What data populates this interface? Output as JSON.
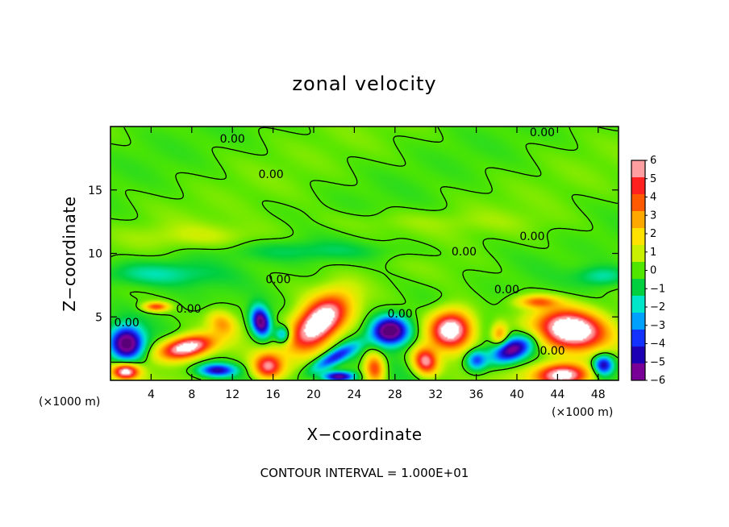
{
  "chart_data": {
    "type": "heatmap",
    "title": "zonal velocity",
    "xlabel": "X−coordinate",
    "ylabel": "Z−coordinate",
    "x_unit": "(×1000 m)",
    "z_unit": "(×1000 m)",
    "footer": "CONTOUR INTERVAL = 1.000E+01",
    "xlim": [
      0,
      50
    ],
    "ylim": [
      0,
      20
    ],
    "x_ticks": [
      "4",
      "8",
      "12",
      "16",
      "20",
      "24",
      "28",
      "32",
      "36",
      "40",
      "44",
      "48"
    ],
    "x_tick_values": [
      4,
      8,
      12,
      16,
      20,
      24,
      28,
      32,
      36,
      40,
      44,
      48
    ],
    "y_ticks": [
      "5",
      "10",
      "15"
    ],
    "y_tick_values": [
      5,
      10,
      15
    ],
    "colorbar": {
      "labels": [
        "6",
        "5",
        "4",
        "3",
        "2",
        "1",
        "0",
        "−1",
        "−2",
        "−3",
        "−4",
        "−5",
        "−6"
      ],
      "values": [
        6,
        5,
        4,
        3,
        2,
        1,
        0,
        -1,
        -2,
        -3,
        -4,
        -5,
        -6
      ],
      "colors": [
        "#ff9ea0",
        "#ff2020",
        "#ff5a00",
        "#ffa800",
        "#ffe200",
        "#c8f000",
        "#50e600",
        "#00d040",
        "#00e6c8",
        "#00a0ff",
        "#1432ff",
        "#1e00b4",
        "#780096"
      ]
    },
    "contour_labels": [
      {
        "text": "0.00",
        "x": 12.0,
        "z": 19.0
      },
      {
        "text": "0.00",
        "x": 42.5,
        "z": 19.5
      },
      {
        "text": "0.00",
        "x": 15.8,
        "z": 16.2
      },
      {
        "text": "0.00",
        "x": 41.5,
        "z": 11.3
      },
      {
        "text": "0.00",
        "x": 34.8,
        "z": 10.1
      },
      {
        "text": "0.00",
        "x": 16.5,
        "z": 7.9
      },
      {
        "text": "0.00",
        "x": 39.0,
        "z": 7.1
      },
      {
        "text": "0.00",
        "x": 7.7,
        "z": 5.6
      },
      {
        "text": "0.00",
        "x": 28.5,
        "z": 5.2
      },
      {
        "text": "0.00",
        "x": 1.6,
        "z": 4.5
      },
      {
        "text": "0.00",
        "x": 43.5,
        "z": 2.3
      }
    ],
    "features": [
      {
        "x": 20.5,
        "z": 4.5,
        "rx": 3.0,
        "rz": 1.6,
        "amp": 8.5,
        "rot": 0.55
      },
      {
        "x": 7.5,
        "z": 2.6,
        "rx": 2.6,
        "rz": 0.85,
        "amp": 8.0,
        "rot": 0.15
      },
      {
        "x": 33.5,
        "z": 4.0,
        "rx": 2.1,
        "rz": 1.5,
        "amp": 8.0,
        "rot": 0.1
      },
      {
        "x": 45.3,
        "z": 4.0,
        "rx": 3.3,
        "rz": 1.5,
        "amp": 8.5,
        "rot": -0.1
      },
      {
        "x": 4.5,
        "z": 5.8,
        "rx": 1.2,
        "rz": 0.35,
        "amp": 4.5,
        "rot": 0
      },
      {
        "x": 11.0,
        "z": 4.5,
        "rx": 1.4,
        "rz": 0.9,
        "amp": 3.0,
        "rot": -0.3
      },
      {
        "x": 15.5,
        "z": 1.1,
        "rx": 1.4,
        "rz": 1.0,
        "amp": 5.5,
        "rot": 0
      },
      {
        "x": 1.5,
        "z": 0.7,
        "rx": 1.3,
        "rz": 0.6,
        "amp": 7.0,
        "rot": 0
      },
      {
        "x": 44.5,
        "z": 0.4,
        "rx": 2.6,
        "rz": 0.9,
        "amp": 8.0,
        "rot": 0
      },
      {
        "x": 42.0,
        "z": 6.2,
        "rx": 2.0,
        "rz": 0.5,
        "amp": 3.5,
        "rot": 0
      },
      {
        "x": 38.3,
        "z": 3.6,
        "rx": 0.8,
        "rz": 0.9,
        "amp": 3.5,
        "rot": 0
      },
      {
        "x": 26.0,
        "z": 1.0,
        "rx": 1.0,
        "rz": 1.2,
        "amp": 5.0,
        "rot": 0.3
      },
      {
        "x": 31.0,
        "z": 1.5,
        "rx": 1.2,
        "rz": 1.0,
        "amp": 6.0,
        "rot": -0.4
      },
      {
        "x": 14.8,
        "z": 4.6,
        "rx": 0.9,
        "rz": 1.2,
        "amp": -7.0,
        "rot": 0.4
      },
      {
        "x": 27.5,
        "z": 3.9,
        "rx": 1.8,
        "rz": 1.1,
        "amp": -7.5,
        "rot": 0
      },
      {
        "x": 1.6,
        "z": 2.9,
        "rx": 1.6,
        "rz": 1.3,
        "amp": -7.0,
        "rot": 0
      },
      {
        "x": 39.5,
        "z": 2.4,
        "rx": 2.2,
        "rz": 0.9,
        "amp": -6.0,
        "rot": 0.3
      },
      {
        "x": 22.0,
        "z": 1.8,
        "rx": 2.5,
        "rz": 0.6,
        "amp": -4.5,
        "rot": 0.4
      },
      {
        "x": 10.5,
        "z": 0.8,
        "rx": 1.8,
        "rz": 0.5,
        "amp": -5.0,
        "rot": 0
      },
      {
        "x": 22.5,
        "z": 0.3,
        "rx": 1.5,
        "rz": 0.4,
        "amp": -6.0,
        "rot": 0
      },
      {
        "x": 48.5,
        "z": 1.2,
        "rx": 1.0,
        "rz": 0.8,
        "amp": -5.5,
        "rot": 0
      },
      {
        "x": 36.0,
        "z": 1.6,
        "rx": 1.0,
        "rz": 0.8,
        "amp": -4.0,
        "rot": 0
      },
      {
        "x": 17.0,
        "z": 3.6,
        "rx": 0.8,
        "rz": 0.7,
        "amp": -4.0,
        "rot": 0
      },
      {
        "x": 4.0,
        "z": 8.4,
        "rx": 6.0,
        "rz": 1.0,
        "amp": -1.8,
        "rot": 0
      },
      {
        "x": 48.5,
        "z": 8.2,
        "rx": 2.5,
        "rz": 0.8,
        "amp": -1.8,
        "rot": 0
      },
      {
        "x": 20.0,
        "z": 10.2,
        "rx": 10.0,
        "rz": 0.8,
        "amp": -1.0,
        "rot": 0
      },
      {
        "x": 9.0,
        "z": 11.3,
        "rx": 8.0,
        "rz": 1.0,
        "amp": 0.8,
        "rot": 0
      },
      {
        "x": 30.0,
        "z": 12.5,
        "rx": 12.0,
        "rz": 0.9,
        "amp": 0.5,
        "rot": 0
      }
    ]
  }
}
